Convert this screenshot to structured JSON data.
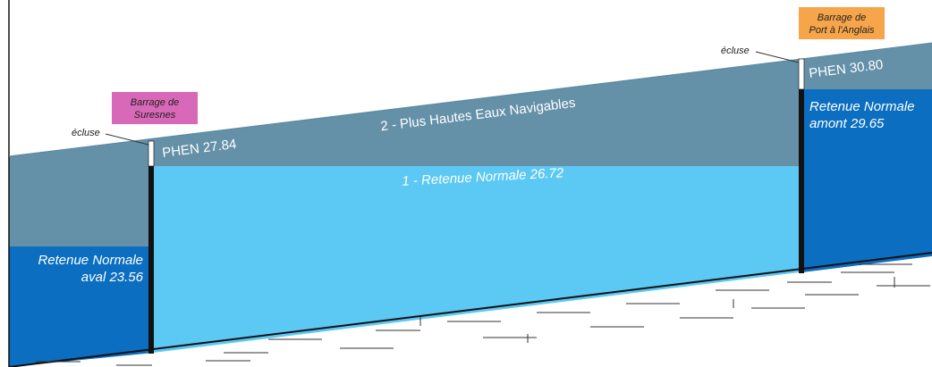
{
  "left_dam": {
    "label": [
      "Barrage de",
      "Suresnes"
    ],
    "lock": "écluse",
    "phen": "PHEN 27.84"
  },
  "right_dam": {
    "label": [
      "Barrage de",
      "Port à l'Anglais"
    ],
    "lock": "écluse",
    "phen": "PHEN 30.80"
  },
  "phen_label": "2 - Plus Hautes Eaux Navigables",
  "middle_label": "1 - Retenue Normale 26.72",
  "downstream_label": [
    "Retenue Normale",
    "aval 23.56"
  ],
  "upstream_label": [
    "Retenue Normale",
    "amont 29.65"
  ]
}
